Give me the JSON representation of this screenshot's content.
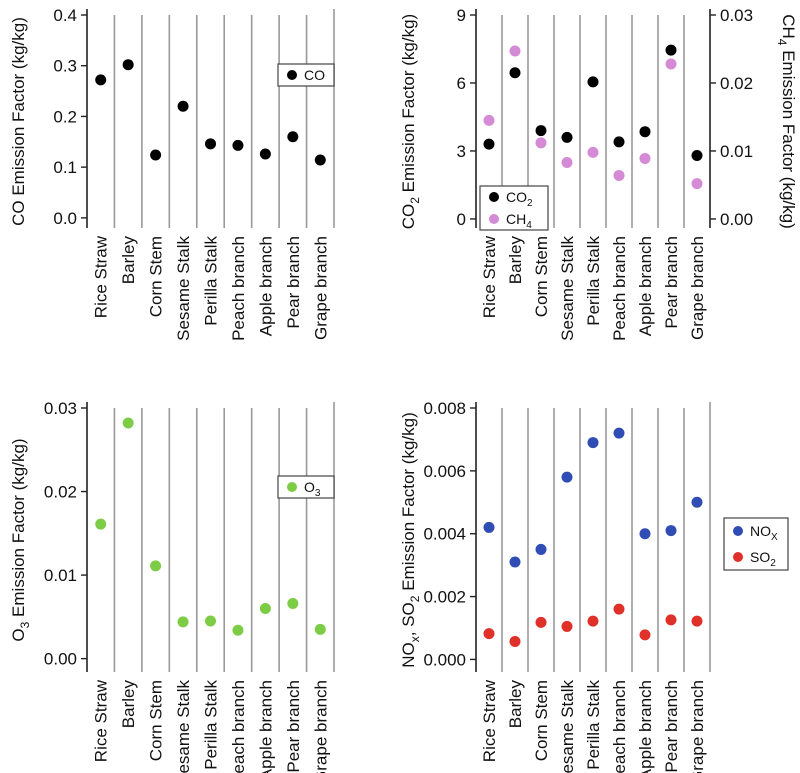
{
  "colors": {
    "co": "#000000",
    "co2": "#000000",
    "ch4": "#d58ad6",
    "o3": "#7ccc45",
    "nox": "#2f4db5",
    "so2": "#e0302a",
    "grid": "#999999",
    "axis": "#222222"
  },
  "chart_data": [
    {
      "id": "co",
      "type": "scatter",
      "categories": [
        "Rice Straw",
        "Barley",
        "Corn Stem",
        "Sesame Stalk",
        "Perilla Stalk",
        "Peach branch",
        "Apple branch",
        "Pear branch",
        "Grape branch"
      ],
      "ylabel": "CO Emission Factor (kg/kg)",
      "ylim": [
        -0.02,
        0.4
      ],
      "yticks": [
        0.0,
        0.1,
        0.2,
        0.3,
        0.4
      ],
      "ytick_labels": [
        "0.0",
        "0.1",
        "0.2",
        "0.3",
        "0.4"
      ],
      "series": [
        {
          "name": "CO",
          "color_key": "co",
          "axis": "left",
          "values": [
            0.272,
            0.302,
            0.124,
            0.22,
            0.146,
            0.143,
            0.126,
            0.16,
            0.114
          ]
        }
      ],
      "legend": {
        "placement": "right",
        "entries": [
          {
            "label": "CO",
            "color_key": "co"
          }
        ]
      }
    },
    {
      "id": "co2-ch4",
      "type": "scatter",
      "categories": [
        "Rice Straw",
        "Barley",
        "Corn Stem",
        "Sesame Stalk",
        "Perilla Stalk",
        "Peach branch",
        "Apple branch",
        "Pear branch",
        "Grape branch"
      ],
      "ylabel": "CO2 Emission Factor (kg/kg)",
      "ylabel_parts": {
        "pre": "CO",
        "sub": "2",
        "post": " Emission Factor (kg/kg)"
      },
      "ylim": [
        -0.4,
        9
      ],
      "yticks": [
        0,
        3,
        6,
        9
      ],
      "ytick_labels": [
        "0",
        "3",
        "6",
        "9"
      ],
      "y2label": "CH4 Emission Factor (kg/kg)",
      "y2label_parts": {
        "pre": "CH",
        "sub": "4",
        "post": " Emission Factor (kg/kg)"
      },
      "y2lim": [
        -0.00133,
        0.03
      ],
      "y2ticks": [
        0.0,
        0.01,
        0.02,
        0.03
      ],
      "y2tick_labels": [
        "0.00",
        "0.01",
        "0.02",
        "0.03"
      ],
      "series": [
        {
          "name": "CO2",
          "color_key": "co2",
          "axis": "left",
          "values": [
            3.3,
            6.45,
            3.9,
            3.6,
            6.05,
            3.4,
            3.85,
            7.45,
            2.8
          ]
        },
        {
          "name": "CH4",
          "color_key": "ch4",
          "axis": "right",
          "values": [
            0.0145,
            0.0247,
            0.0112,
            0.0083,
            0.0098,
            0.0064,
            0.0089,
            0.0228,
            0.0052
          ]
        }
      ],
      "legend": {
        "placement": "bottom-left",
        "entries": [
          {
            "pre": "CO",
            "sub": "2",
            "color_key": "co2"
          },
          {
            "pre": "CH",
            "sub": "4",
            "color_key": "ch4"
          }
        ]
      }
    },
    {
      "id": "o3",
      "type": "scatter",
      "categories": [
        "Rice Straw",
        "Barley",
        "Corn Stem",
        "Sesame Stalk",
        "Perilla Stalk",
        "Peach branch",
        "Apple branch",
        "Pear branch",
        "Grape branch"
      ],
      "ylabel": "O3 Emission Factor (kg/kg)",
      "ylabel_parts": {
        "pre": "O",
        "sub": "3",
        "post": " Emission Factor (kg/kg)"
      },
      "ylim": [
        -0.0016,
        0.03
      ],
      "yticks": [
        0.0,
        0.01,
        0.02,
        0.03
      ],
      "ytick_labels": [
        "0.00",
        "0.01",
        "0.02",
        "0.03"
      ],
      "series": [
        {
          "name": "O3",
          "color_key": "o3",
          "axis": "left",
          "values": [
            0.0161,
            0.0282,
            0.0111,
            0.0044,
            0.0045,
            0.0034,
            0.006,
            0.0066,
            0.0035
          ]
        }
      ],
      "legend": {
        "placement": "right",
        "entries": [
          {
            "pre": "O",
            "sub": "3",
            "color_key": "o3"
          }
        ]
      }
    },
    {
      "id": "nox-so2",
      "type": "scatter",
      "categories": [
        "Rice Straw",
        "Barley",
        "Corn Stem",
        "Sesame Stalk",
        "Perilla Stalk",
        "Peach branch",
        "Apple branch",
        "Pear branch",
        "Grape branch"
      ],
      "ylabel": "NOx, SO2 Emission Factor (kg/kg)",
      "ylabel_parts": {
        "pre": "NO",
        "sub": "x",
        "mid": ", SO",
        "sub2": "2",
        "post": " Emission Factor (kg/kg)"
      },
      "ylim": [
        -0.0004,
        0.008
      ],
      "yticks": [
        0.0,
        0.002,
        0.004,
        0.006,
        0.008
      ],
      "ytick_labels": [
        "0.000",
        "0.002",
        "0.004",
        "0.006",
        "0.008"
      ],
      "series": [
        {
          "name": "NOx",
          "color_key": "nox",
          "axis": "left",
          "values": [
            0.0042,
            0.0031,
            0.0035,
            0.0058,
            0.0069,
            0.0072,
            0.004,
            0.0041,
            0.005
          ]
        },
        {
          "name": "SO2",
          "color_key": "so2",
          "axis": "left",
          "values": [
            0.00082,
            0.00057,
            0.00118,
            0.00105,
            0.00122,
            0.0016,
            0.00078,
            0.00126,
            0.00122
          ]
        }
      ],
      "legend": {
        "placement": "right",
        "entries": [
          {
            "pre": "NO",
            "sub": "X",
            "color_key": "nox"
          },
          {
            "pre": "SO",
            "sub": "2",
            "color_key": "so2"
          }
        ]
      }
    }
  ]
}
